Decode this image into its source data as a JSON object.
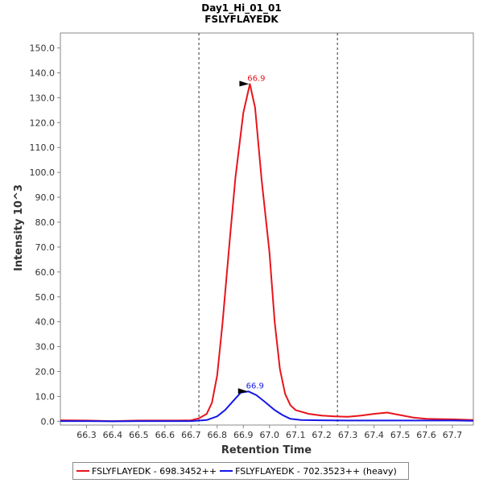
{
  "chart_data": {
    "type": "line",
    "title": "Day1_Hi_01_01",
    "subtitle": "FSLYFLAYEDK",
    "xlabel": "Retention Time",
    "ylabel": "Intensity 10^3",
    "xlim": [
      66.2,
      67.78
    ],
    "ylim": [
      -1.5,
      156
    ],
    "x_ticks": [
      "66.3",
      "66.4",
      "66.5",
      "66.6",
      "66.7",
      "66.8",
      "66.9",
      "67.0",
      "67.1",
      "67.2",
      "67.3",
      "67.4",
      "67.5",
      "67.6",
      "67.7"
    ],
    "y_ticks": [
      "0.0",
      "10.0",
      "20.0",
      "30.0",
      "40.0",
      "50.0",
      "60.0",
      "70.0",
      "80.0",
      "90.0",
      "100.0",
      "110.0",
      "120.0",
      "130.0",
      "140.0",
      "150.0"
    ],
    "integration_bounds": [
      66.73,
      67.26
    ],
    "grid": false,
    "legend_position": "bottom",
    "series": [
      {
        "name": "FSLYFLAYEDK - 698.3452++",
        "color": "#e8141c",
        "x": [
          66.2,
          66.3,
          66.4,
          66.5,
          66.6,
          66.65,
          66.7,
          66.73,
          66.76,
          66.78,
          66.8,
          66.82,
          66.85,
          66.87,
          66.9,
          66.925,
          66.945,
          66.97,
          67.0,
          67.02,
          67.04,
          67.06,
          67.08,
          67.1,
          67.15,
          67.2,
          67.25,
          67.3,
          67.35,
          67.4,
          67.45,
          67.5,
          67.55,
          67.6,
          67.65,
          67.7,
          67.78
        ],
        "y": [
          0.4,
          0.3,
          0.1,
          0.3,
          0.3,
          0.3,
          0.4,
          1.2,
          3.0,
          7.5,
          18.5,
          39,
          75,
          98,
          124,
          135.5,
          126,
          97,
          68,
          40,
          21,
          11,
          6.5,
          4.5,
          3.0,
          2.3,
          2.0,
          1.8,
          2.3,
          3.0,
          3.5,
          2.5,
          1.5,
          1.0,
          0.9,
          0.8,
          0.5
        ],
        "peak_label": "66.9",
        "peak_x": 66.925,
        "peak_y": 135.5
      },
      {
        "name": "FSLYFLAYEDK - 702.3523++ (heavy)",
        "color": "#1418e8",
        "x": [
          66.2,
          66.3,
          66.4,
          66.5,
          66.6,
          66.7,
          66.76,
          66.8,
          66.83,
          66.86,
          66.89,
          66.92,
          66.95,
          66.98,
          67.02,
          67.05,
          67.08,
          67.12,
          67.2,
          67.3,
          67.4,
          67.5,
          67.6,
          67.7,
          67.78
        ],
        "y": [
          0.1,
          0.1,
          0.0,
          0.1,
          0.1,
          0.1,
          0.5,
          2.0,
          4.5,
          8.0,
          11.5,
          12.0,
          10.5,
          8.0,
          4.5,
          2.5,
          1.0,
          0.5,
          0.4,
          0.3,
          0.3,
          0.3,
          0.3,
          0.3,
          0.2
        ],
        "peak_label": "66.9",
        "peak_x": 66.92,
        "peak_y": 12.0
      }
    ]
  }
}
